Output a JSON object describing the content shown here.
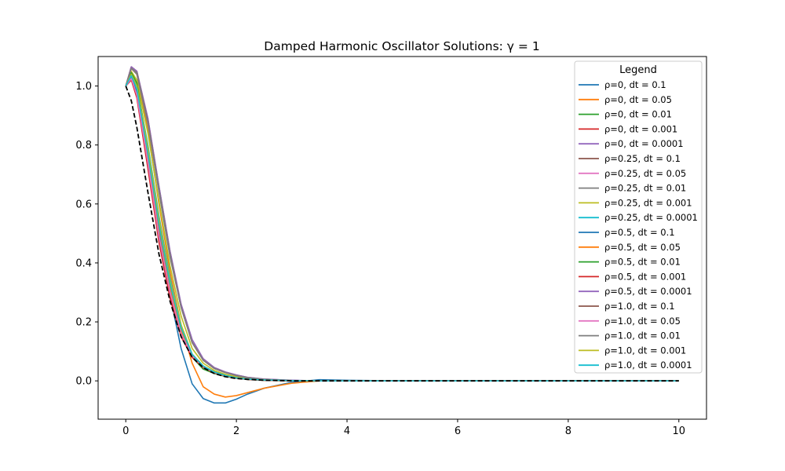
{
  "chart_data": {
    "type": "line",
    "title": "Damped Harmonic Oscillator Solutions: γ = 1",
    "xlabel": "",
    "ylabel": "",
    "xlim": [
      -0.5,
      10.5
    ],
    "ylim": [
      -0.13,
      1.1
    ],
    "x_ticks": [
      "0",
      "2",
      "4",
      "6",
      "8",
      "10"
    ],
    "y_ticks": [
      "0.0",
      "0.2",
      "0.4",
      "0.6",
      "0.8",
      "1.0"
    ],
    "grid": false,
    "legend": {
      "title": "Legend",
      "placement": "top-right"
    },
    "x": [
      0,
      0.1,
      0.2,
      0.4,
      0.6,
      0.8,
      1.0,
      1.2,
      1.4,
      1.6,
      1.8,
      2.0,
      2.2,
      2.5,
      3.0,
      3.5,
      4.0,
      5.0,
      6.0,
      8.0,
      10.0
    ],
    "reference": {
      "style": "dashed",
      "color": "#000000",
      "values": [
        1.0,
        0.95,
        0.86,
        0.64,
        0.43,
        0.27,
        0.15,
        0.08,
        0.045,
        0.025,
        0.014,
        0.008,
        0.005,
        0.002,
        0.0,
        0.0,
        0.0,
        0.0,
        0.0,
        0.0,
        0.0
      ]
    },
    "series": [
      {
        "name": "ρ=0, dt = 0.1",
        "color": "#1f77b4",
        "values": [
          1.0,
          1.04,
          1.0,
          0.78,
          0.52,
          0.29,
          0.11,
          -0.01,
          -0.06,
          -0.075,
          -0.075,
          -0.062,
          -0.045,
          -0.025,
          -0.005,
          0.004,
          0.002,
          0.0,
          0.0,
          0.0,
          0.0
        ]
      },
      {
        "name": "ρ=0, dt = 0.05",
        "color": "#ff7f0e",
        "values": [
          1.0,
          1.06,
          1.04,
          0.85,
          0.6,
          0.37,
          0.19,
          0.06,
          -0.02,
          -0.045,
          -0.055,
          -0.05,
          -0.04,
          -0.025,
          -0.008,
          0.0,
          0.001,
          0.0,
          0.0,
          0.0,
          0.0
        ]
      },
      {
        "name": "ρ=0, dt = 0.01",
        "color": "#2ca02c",
        "values": [
          1.0,
          1.045,
          1.0,
          0.78,
          0.53,
          0.32,
          0.17,
          0.08,
          0.04,
          0.025,
          0.015,
          0.009,
          0.005,
          0.002,
          0.0,
          0.0,
          0.0,
          0.0,
          0.0,
          0.0,
          0.0
        ]
      },
      {
        "name": "ρ=0, dt = 0.001",
        "color": "#d62728",
        "values": [
          1.0,
          1.03,
          0.97,
          0.73,
          0.48,
          0.29,
          0.16,
          0.09,
          0.05,
          0.03,
          0.018,
          0.01,
          0.006,
          0.003,
          0.001,
          0.0,
          0.0,
          0.0,
          0.0,
          0.0,
          0.0
        ]
      },
      {
        "name": "ρ=0, dt = 0.0001",
        "color": "#9467bd",
        "values": [
          1.0,
          1.065,
          1.05,
          0.89,
          0.66,
          0.44,
          0.26,
          0.14,
          0.075,
          0.045,
          0.03,
          0.02,
          0.012,
          0.006,
          0.002,
          0.0,
          0.0,
          0.0,
          0.0,
          0.0,
          0.0
        ]
      },
      {
        "name": "ρ=0.25, dt = 0.1",
        "color": "#8c564b",
        "values": [
          1.0,
          1.065,
          1.05,
          0.88,
          0.65,
          0.43,
          0.25,
          0.13,
          0.07,
          0.042,
          0.028,
          0.018,
          0.011,
          0.005,
          0.001,
          0.0,
          0.0,
          0.0,
          0.0,
          0.0,
          0.0
        ]
      },
      {
        "name": "ρ=0.25, dt = 0.05",
        "color": "#e377c2",
        "values": [
          1.0,
          1.03,
          0.98,
          0.75,
          0.5,
          0.31,
          0.17,
          0.09,
          0.05,
          0.03,
          0.018,
          0.01,
          0.006,
          0.003,
          0.001,
          0.0,
          0.0,
          0.0,
          0.0,
          0.0,
          0.0
        ]
      },
      {
        "name": "ρ=0.25, dt = 0.01",
        "color": "#7f7f7f",
        "values": [
          1.0,
          1.06,
          1.04,
          0.87,
          0.64,
          0.42,
          0.25,
          0.13,
          0.07,
          0.042,
          0.028,
          0.018,
          0.011,
          0.005,
          0.001,
          0.0,
          0.0,
          0.0,
          0.0,
          0.0,
          0.0
        ]
      },
      {
        "name": "ρ=0.25, dt = 0.001",
        "color": "#bcbd22",
        "values": [
          1.0,
          1.05,
          1.02,
          0.84,
          0.61,
          0.39,
          0.22,
          0.11,
          0.06,
          0.035,
          0.022,
          0.014,
          0.008,
          0.004,
          0.001,
          0.0,
          0.0,
          0.0,
          0.0,
          0.0,
          0.0
        ]
      },
      {
        "name": "ρ=0.25, dt = 0.0001",
        "color": "#17becf",
        "values": [
          1.0,
          1.04,
          1.0,
          0.8,
          0.56,
          0.35,
          0.19,
          0.09,
          0.05,
          0.03,
          0.018,
          0.01,
          0.006,
          0.003,
          0.001,
          0.0,
          0.0,
          0.0,
          0.0,
          0.0,
          0.0
        ]
      },
      {
        "name": "ρ=0.5, dt = 0.1",
        "color": "#1f77b4",
        "values": [
          1.0,
          1.03,
          0.98,
          0.75,
          0.51,
          0.31,
          0.17,
          0.09,
          0.05,
          0.03,
          0.018,
          0.01,
          0.006,
          0.003,
          0.001,
          0.0,
          0.0,
          0.0,
          0.0,
          0.0,
          0.0
        ]
      },
      {
        "name": "ρ=0.5, dt = 0.05",
        "color": "#ff7f0e",
        "values": [
          1.0,
          1.035,
          0.99,
          0.76,
          0.52,
          0.32,
          0.17,
          0.09,
          0.05,
          0.03,
          0.018,
          0.01,
          0.006,
          0.003,
          0.001,
          0.0,
          0.0,
          0.0,
          0.0,
          0.0,
          0.0
        ]
      },
      {
        "name": "ρ=0.5, dt = 0.01",
        "color": "#2ca02c",
        "values": [
          1.0,
          1.045,
          1.01,
          0.79,
          0.55,
          0.34,
          0.18,
          0.09,
          0.05,
          0.03,
          0.018,
          0.01,
          0.006,
          0.003,
          0.001,
          0.0,
          0.0,
          0.0,
          0.0,
          0.0,
          0.0
        ]
      },
      {
        "name": "ρ=0.5, dt = 0.001",
        "color": "#d62728",
        "values": [
          1.0,
          1.02,
          0.96,
          0.72,
          0.47,
          0.28,
          0.15,
          0.08,
          0.045,
          0.027,
          0.016,
          0.009,
          0.005,
          0.002,
          0.0,
          0.0,
          0.0,
          0.0,
          0.0,
          0.0,
          0.0
        ]
      },
      {
        "name": "ρ=0.5, dt = 0.0001",
        "color": "#9467bd",
        "values": [
          1.0,
          1.065,
          1.05,
          0.89,
          0.66,
          0.44,
          0.26,
          0.14,
          0.075,
          0.045,
          0.03,
          0.02,
          0.012,
          0.006,
          0.002,
          0.0,
          0.0,
          0.0,
          0.0,
          0.0,
          0.0
        ]
      },
      {
        "name": "ρ=1.0, dt = 0.1",
        "color": "#8c564b",
        "values": [
          1.0,
          1.06,
          1.045,
          0.88,
          0.65,
          0.43,
          0.25,
          0.13,
          0.07,
          0.042,
          0.028,
          0.018,
          0.011,
          0.005,
          0.001,
          0.0,
          0.0,
          0.0,
          0.0,
          0.0,
          0.0
        ]
      },
      {
        "name": "ρ=1.0, dt = 0.05",
        "color": "#e377c2",
        "values": [
          1.0,
          1.025,
          0.97,
          0.74,
          0.49,
          0.3,
          0.16,
          0.085,
          0.048,
          0.029,
          0.017,
          0.01,
          0.006,
          0.003,
          0.001,
          0.0,
          0.0,
          0.0,
          0.0,
          0.0,
          0.0
        ]
      },
      {
        "name": "ρ=1.0, dt = 0.01",
        "color": "#7f7f7f",
        "values": [
          1.0,
          1.06,
          1.045,
          0.875,
          0.65,
          0.43,
          0.25,
          0.13,
          0.07,
          0.042,
          0.028,
          0.018,
          0.011,
          0.005,
          0.001,
          0.0,
          0.0,
          0.0,
          0.0,
          0.0,
          0.0
        ]
      },
      {
        "name": "ρ=1.0, dt = 0.001",
        "color": "#bcbd22",
        "values": [
          1.0,
          1.04,
          1.0,
          0.79,
          0.55,
          0.34,
          0.19,
          0.09,
          0.05,
          0.03,
          0.018,
          0.01,
          0.006,
          0.003,
          0.001,
          0.0,
          0.0,
          0.0,
          0.0,
          0.0,
          0.0
        ]
      },
      {
        "name": "ρ=1.0, dt = 0.0001",
        "color": "#17becf",
        "values": [
          1.0,
          1.035,
          0.99,
          0.77,
          0.53,
          0.33,
          0.18,
          0.09,
          0.05,
          0.03,
          0.018,
          0.01,
          0.006,
          0.003,
          0.001,
          0.0,
          0.0,
          0.0,
          0.0,
          0.0,
          0.0
        ]
      }
    ]
  }
}
